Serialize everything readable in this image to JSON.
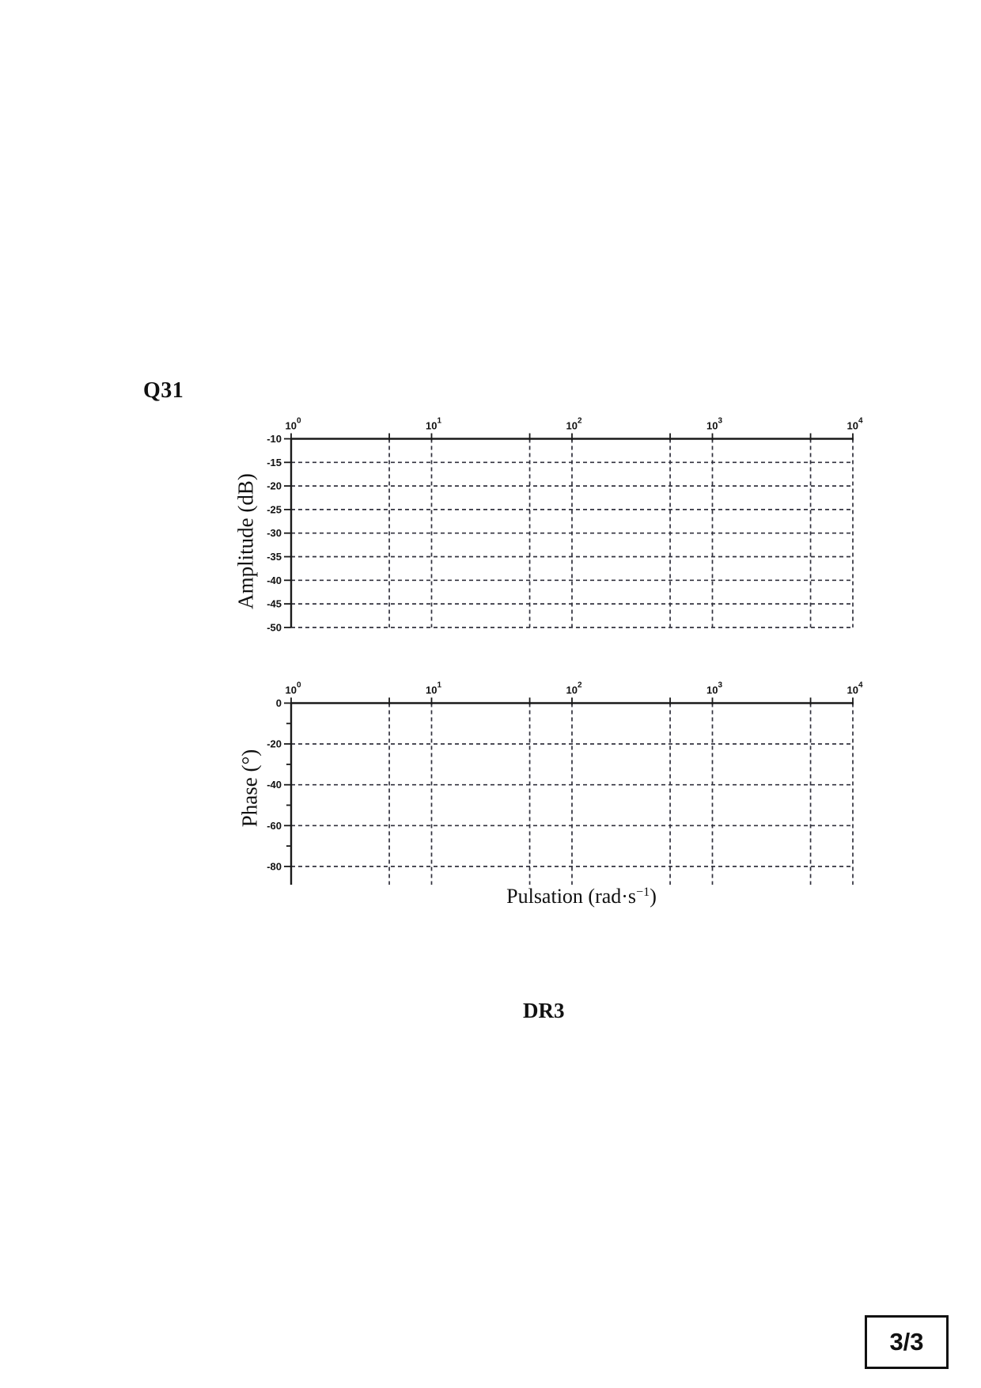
{
  "page": {
    "question_label": "Q31",
    "reference_label": "DR3",
    "page_number": "3/3"
  },
  "charts": {
    "x_axis": {
      "scale": "log",
      "tick_base": "10",
      "tick_exponents": [
        "0",
        "1",
        "2",
        "3",
        "4"
      ],
      "minor_gridline_multiple": 5,
      "minor_gridline_log_offset": 0.69897,
      "xlabel": {
        "pre": "Pulsation (rad·s",
        "sup": "−1",
        "post": ")"
      }
    },
    "amplitude": {
      "ylabel": "Amplitude (dB)",
      "y_tick_labels": [
        "-10",
        "-15",
        "-20",
        "-25",
        "-30",
        "-35",
        "-40",
        "-45",
        "-50"
      ]
    },
    "phase": {
      "ylabel": "Phase (°)",
      "y_major_tick_labels": [
        "0",
        "-20",
        "-40",
        "-60",
        "-80"
      ],
      "y_minor_tick_values": [
        -10,
        -30,
        -50,
        -70
      ]
    }
  },
  "chart_data": [
    {
      "type": "line",
      "title": "",
      "xlabel": "Pulsation (rad·s−1)",
      "ylabel": "Amplitude (dB)",
      "x_scale": "log",
      "xlim": [
        1,
        10000
      ],
      "x_ticks": [
        1,
        10,
        100,
        1000,
        10000
      ],
      "x_minor_gridlines": [
        5,
        50,
        500,
        5000
      ],
      "ylim": [
        -50,
        -10
      ],
      "y_ticks": [
        -10,
        -15,
        -20,
        -25,
        -30,
        -35,
        -40,
        -45,
        -50
      ],
      "grid": "dashed",
      "legend": "none",
      "series": []
    },
    {
      "type": "line",
      "title": "",
      "xlabel": "Pulsation (rad·s−1)",
      "ylabel": "Phase (°)",
      "x_scale": "log",
      "xlim": [
        1,
        10000
      ],
      "x_ticks": [
        1,
        10,
        100,
        1000,
        10000
      ],
      "x_minor_gridlines": [
        5,
        50,
        500,
        5000
      ],
      "ylim": [
        -90,
        0
      ],
      "y_ticks": [
        0,
        -20,
        -40,
        -60,
        -80
      ],
      "y_minor_ticks": [
        -10,
        -30,
        -50,
        -70
      ],
      "grid": "dashed",
      "legend": "none",
      "series": []
    }
  ]
}
